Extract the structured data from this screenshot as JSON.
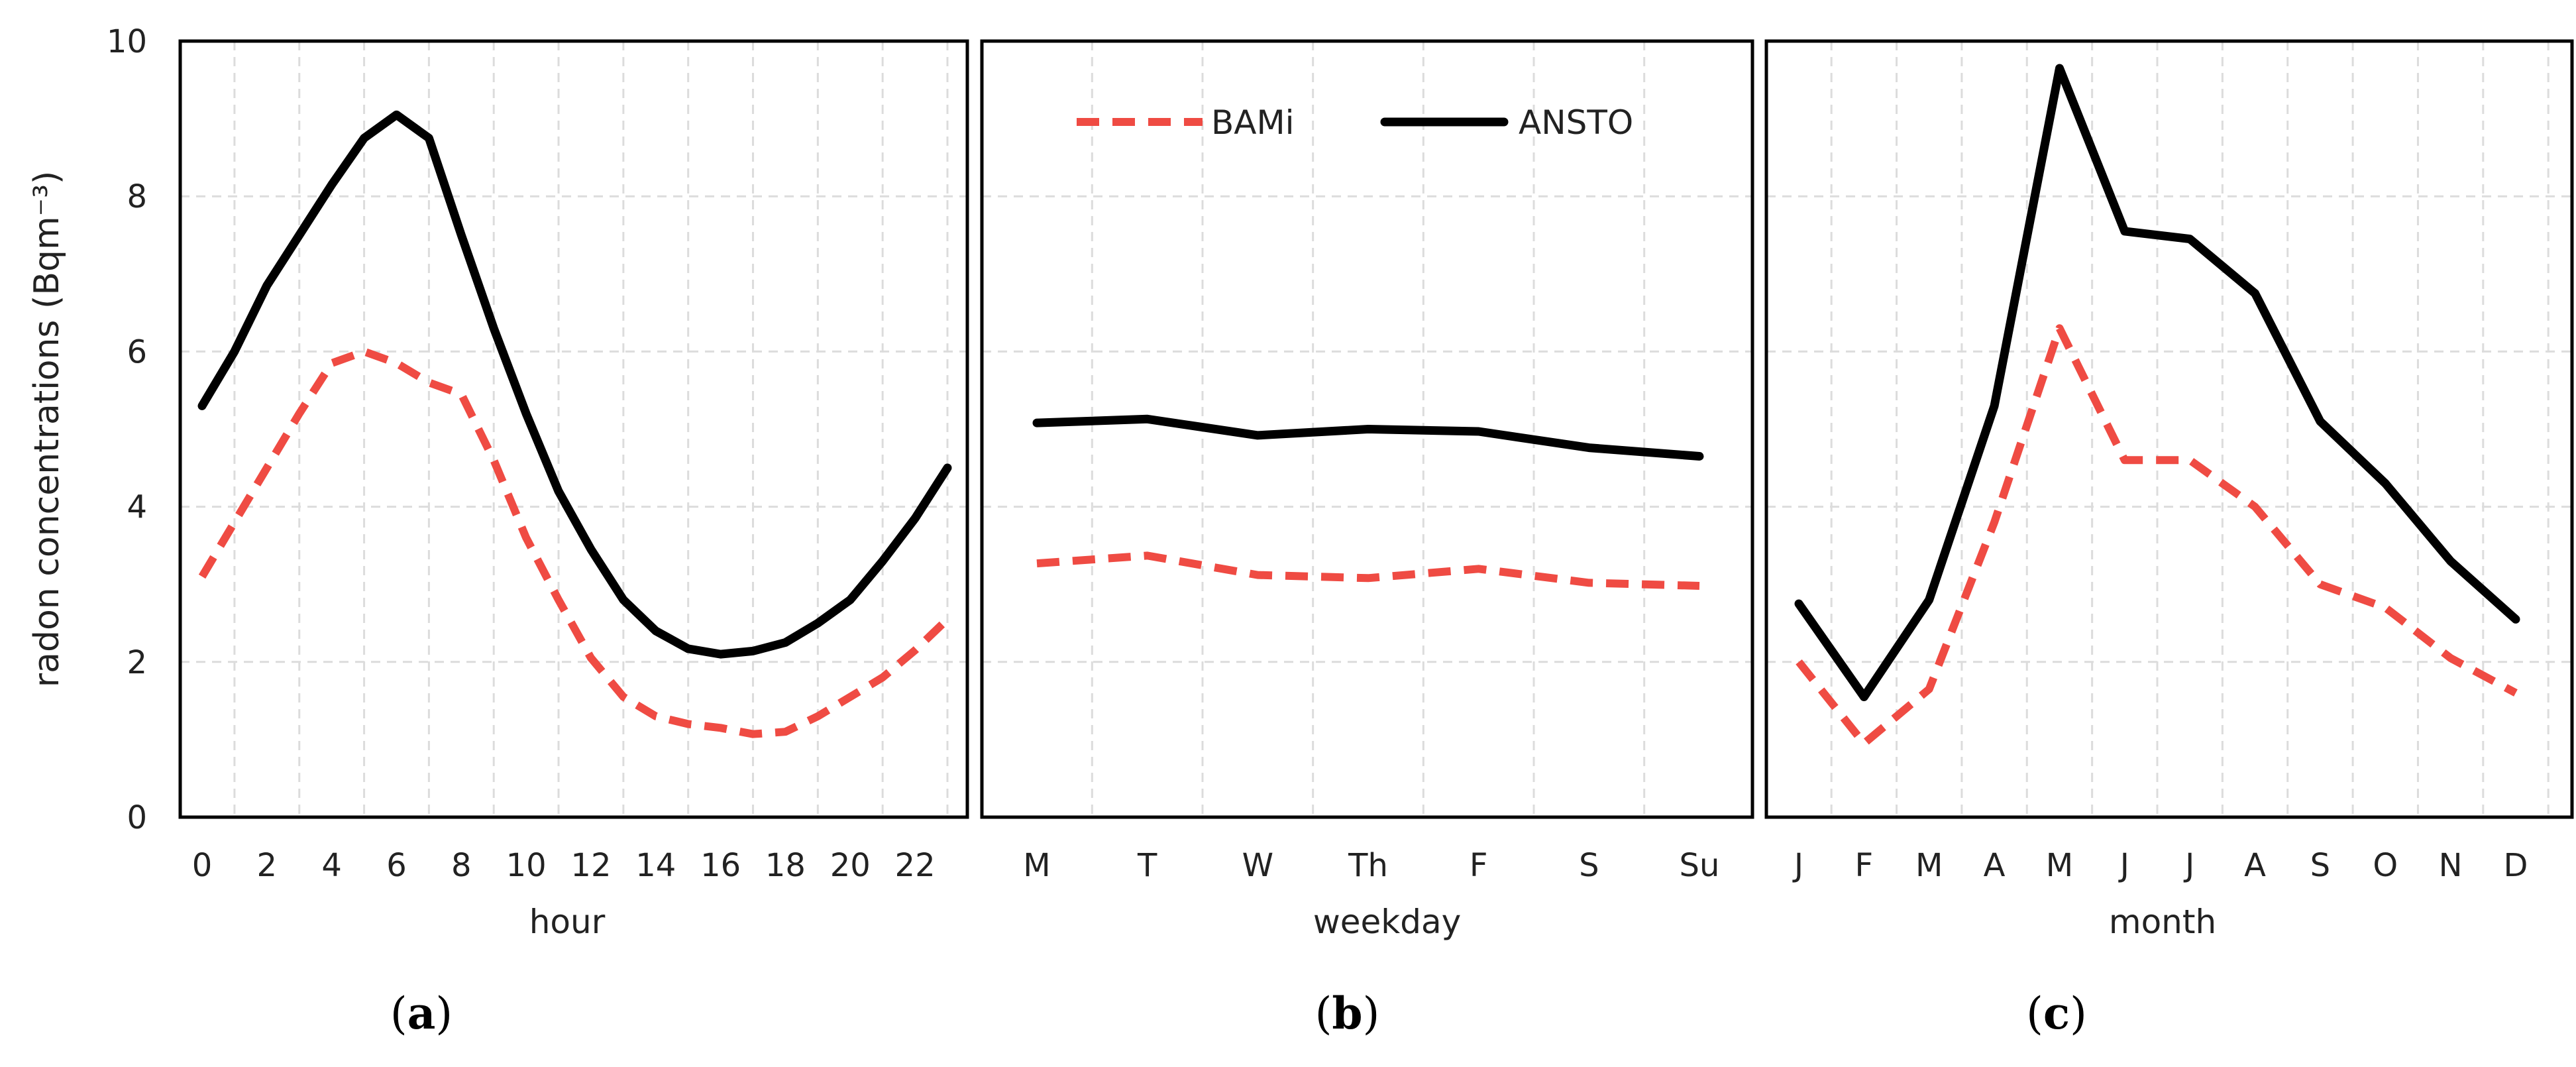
{
  "y_axis_label": "radon concentrations (Bqm⁻³)",
  "chart_data": [
    {
      "type": "line",
      "panel": "(a)",
      "panel_letter": "a",
      "xlabel": "hour",
      "x": [
        0,
        1,
        2,
        3,
        4,
        5,
        6,
        7,
        8,
        9,
        10,
        11,
        12,
        13,
        14,
        15,
        16,
        17,
        18,
        19,
        20,
        21,
        22,
        23
      ],
      "x_ticks": [
        0,
        2,
        4,
        6,
        8,
        10,
        12,
        14,
        16,
        18,
        20,
        22
      ],
      "x_tick_labels": [
        "0",
        "2",
        "4",
        "6",
        "8",
        "10",
        "12",
        "14",
        "16",
        "18",
        "20",
        "22"
      ],
      "y_ticks": [
        0,
        2,
        4,
        6,
        8,
        10
      ],
      "ylim": [
        0,
        10
      ],
      "grid": true,
      "series": [
        {
          "name": "BAMi",
          "color": "#EF4B43",
          "dash": true,
          "values": [
            3.1,
            3.8,
            4.5,
            5.2,
            5.85,
            6.0,
            5.85,
            5.6,
            5.45,
            4.6,
            3.6,
            2.8,
            2.05,
            1.55,
            1.3,
            1.2,
            1.15,
            1.07,
            1.1,
            1.3,
            1.55,
            1.8,
            2.15,
            2.55
          ]
        },
        {
          "name": "ANSTO",
          "color": "#000000",
          "dash": false,
          "values": [
            5.3,
            6.0,
            6.85,
            7.5,
            8.15,
            8.75,
            9.05,
            8.75,
            7.5,
            6.3,
            5.2,
            4.2,
            3.45,
            2.8,
            2.4,
            2.17,
            2.1,
            2.14,
            2.25,
            2.5,
            2.8,
            3.3,
            3.85,
            4.5
          ]
        }
      ]
    },
    {
      "type": "line",
      "panel": "(b)",
      "panel_letter": "b",
      "xlabel": "weekday",
      "categories": [
        "M",
        "T",
        "W",
        "Th",
        "F",
        "S",
        "Su"
      ],
      "ylim": [
        0,
        10
      ],
      "grid": true,
      "legend": {
        "placement": "top",
        "entries": [
          "BAMi",
          "ANSTO"
        ]
      },
      "series": [
        {
          "name": "BAMi",
          "color": "#EF4B43",
          "dash": true,
          "values": [
            3.27,
            3.37,
            3.12,
            3.08,
            3.2,
            3.02,
            2.98
          ]
        },
        {
          "name": "ANSTO",
          "color": "#000000",
          "dash": false,
          "values": [
            5.08,
            5.13,
            4.92,
            5.0,
            4.97,
            4.76,
            4.65
          ]
        }
      ]
    },
    {
      "type": "line",
      "panel": "(c)",
      "panel_letter": "c",
      "xlabel": "month",
      "categories": [
        "J",
        "F",
        "M",
        "A",
        "M",
        "J",
        "J",
        "A",
        "S",
        "O",
        "N",
        "D"
      ],
      "ylim": [
        0,
        10
      ],
      "grid": true,
      "series": [
        {
          "name": "BAMi",
          "color": "#EF4B43",
          "dash": true,
          "values": [
            2.0,
            0.95,
            1.65,
            3.8,
            6.3,
            4.6,
            4.6,
            4.0,
            3.0,
            2.7,
            2.05,
            1.6
          ]
        },
        {
          "name": "ANSTO",
          "color": "#000000",
          "dash": false,
          "values": [
            2.75,
            1.55,
            2.8,
            5.3,
            9.65,
            7.55,
            7.45,
            6.75,
            5.1,
            4.3,
            3.3,
            2.55
          ]
        }
      ]
    }
  ]
}
